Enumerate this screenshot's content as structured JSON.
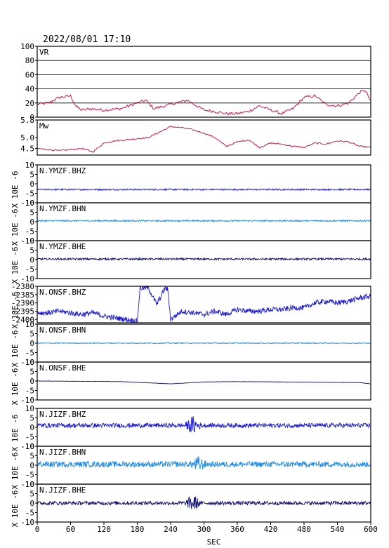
{
  "header": {
    "timestamp": "2022/08/01 17:10"
  },
  "chart_data": {
    "type": "line",
    "x_axis": {
      "label": "SEC",
      "range": [
        0,
        600
      ],
      "ticks": [
        0,
        60,
        120,
        180,
        240,
        300,
        360,
        420,
        480,
        540,
        600
      ]
    },
    "shared_ylabel": "X 10E -6",
    "panels": [
      {
        "name": "VR",
        "ylim": [
          0,
          100
        ],
        "yticks": [
          "100",
          "80",
          "60",
          "40",
          "20",
          "0"
        ],
        "grid": true,
        "color": "#d4144c",
        "series": {
          "x": [
            0,
            20,
            40,
            60,
            70,
            80,
            95,
            120,
            150,
            180,
            195,
            210,
            240,
            270,
            300,
            320,
            340,
            360,
            380,
            400,
            420,
            440,
            460,
            480,
            500,
            520,
            540,
            560,
            580,
            590,
            600
          ],
          "y": [
            18,
            20,
            28,
            30,
            15,
            10,
            12,
            10,
            12,
            20,
            24,
            12,
            18,
            24,
            10,
            8,
            5,
            5,
            8,
            16,
            10,
            5,
            12,
            28,
            30,
            18,
            16,
            20,
            35,
            38,
            22
          ]
        }
      },
      {
        "name": "Mw",
        "ylim": [
          4.2,
          5.8
        ],
        "yticks": [
          "5.8",
          "5.0",
          "4.5"
        ],
        "grid": false,
        "color": "#d4144c",
        "series": {
          "x": [
            0,
            20,
            40,
            60,
            80,
            100,
            120,
            140,
            160,
            180,
            200,
            220,
            240,
            260,
            280,
            300,
            320,
            340,
            360,
            380,
            400,
            420,
            440,
            460,
            480,
            500,
            520,
            540,
            560,
            580,
            600
          ],
          "y": [
            4.5,
            4.45,
            4.4,
            4.45,
            4.5,
            4.35,
            4.75,
            4.85,
            4.9,
            4.95,
            5.0,
            5.25,
            5.5,
            5.45,
            5.35,
            5.2,
            5.0,
            4.6,
            4.8,
            4.9,
            4.55,
            4.75,
            4.7,
            4.6,
            4.55,
            4.75,
            4.7,
            4.85,
            4.8,
            4.6,
            4.55
          ]
        }
      },
      {
        "name": "N.YMZF.BHZ",
        "ylim": [
          -10,
          10
        ],
        "yticks": [
          "10",
          "5",
          "0",
          "-5",
          "-10"
        ],
        "color": "#1a1ad6",
        "trace": {
          "baseline": -3,
          "amplitude": 0.4
        }
      },
      {
        "name": "N.YMZF.BHN",
        "ylim": [
          -10,
          10
        ],
        "yticks": [
          "10",
          "5",
          "0",
          "-5",
          "-10"
        ],
        "color": "#1e8ce6",
        "trace": {
          "baseline": 0.5,
          "amplitude": 0.4
        }
      },
      {
        "name": "N.YMZF.BHE",
        "ylim": [
          -10,
          10
        ],
        "yticks": [
          "10",
          "5",
          "0",
          "-5",
          "-10"
        ],
        "color": "#101070",
        "trace": {
          "baseline": 0.3,
          "amplitude": 0.5
        }
      },
      {
        "name": "N.ONSF.BHZ",
        "ylim": [
          -2402,
          -2380
        ],
        "yticks": [
          "-2380",
          "-2385",
          "-2390",
          "-2395",
          "-2400"
        ],
        "color": "#1a1ad6",
        "trace": {
          "x": [
            0,
            20,
            40,
            60,
            80,
            100,
            120,
            140,
            160,
            180,
            185,
            200,
            215,
            230,
            235,
            240,
            260,
            280,
            300,
            320,
            340,
            360,
            380,
            400,
            420,
            440,
            460,
            480,
            500,
            520,
            540,
            560,
            580,
            600
          ],
          "y": [
            -2396,
            -2396,
            -2395,
            -2396,
            -2397,
            -2396,
            -2398,
            -2399,
            -2400,
            -2401,
            -2381,
            -2381,
            -2391,
            -2381,
            -2382,
            -2400,
            -2395,
            -2396,
            -2397,
            -2395,
            -2397,
            -2394,
            -2395,
            -2395,
            -2394,
            -2394,
            -2393,
            -2393,
            -2390,
            -2389,
            -2390,
            -2389,
            -2387,
            -2386
          ],
          "amplitude": 1.6
        }
      },
      {
        "name": "N.ONSF.BHN",
        "ylim": [
          -10,
          10
        ],
        "yticks": [
          "10",
          "5",
          "0",
          "-5",
          "-10"
        ],
        "color": "#1e8ce6",
        "trace": {
          "baseline": 0,
          "amplitude": 0.2
        }
      },
      {
        "name": "N.ONSF.BHE",
        "ylim": [
          -10,
          10
        ],
        "yticks": [
          "10",
          "5",
          "0",
          "-5",
          "-10"
        ],
        "color": "#101070",
        "trace": {
          "x": [
            0,
            150,
            240,
            300,
            360,
            480,
            580,
            600
          ],
          "y": [
            0,
            -0.3,
            -1.5,
            -0.5,
            -0.3,
            -0.6,
            -0.8,
            -1.5
          ],
          "amplitude": 0.1
        }
      },
      {
        "name": "N.JIZF.BHZ",
        "ylim": [
          -10,
          10
        ],
        "yticks": [
          "10",
          "5",
          "0",
          "-5",
          "-10"
        ],
        "color": "#1a1ad6",
        "trace": {
          "baseline": 1,
          "amplitude": 1.2,
          "burst_at": 280,
          "burst_amplitude": 4
        }
      },
      {
        "name": "N.JIZF.BHN",
        "ylim": [
          -10,
          10
        ],
        "yticks": [
          "10",
          "5",
          "0",
          "-5",
          "-10"
        ],
        "color": "#1e8ce6",
        "trace": {
          "baseline": 0.5,
          "amplitude": 1.5,
          "burst_at": 290,
          "burst_amplitude": 3
        }
      },
      {
        "name": "N.JIZF.BHE",
        "ylim": [
          -10,
          10
        ],
        "yticks": [
          "10",
          "5",
          "0",
          "-5",
          "-10"
        ],
        "color": "#101070",
        "trace": {
          "baseline": 0,
          "amplitude": 1.0,
          "burst_at": 280,
          "burst_amplitude": 4
        }
      }
    ]
  }
}
